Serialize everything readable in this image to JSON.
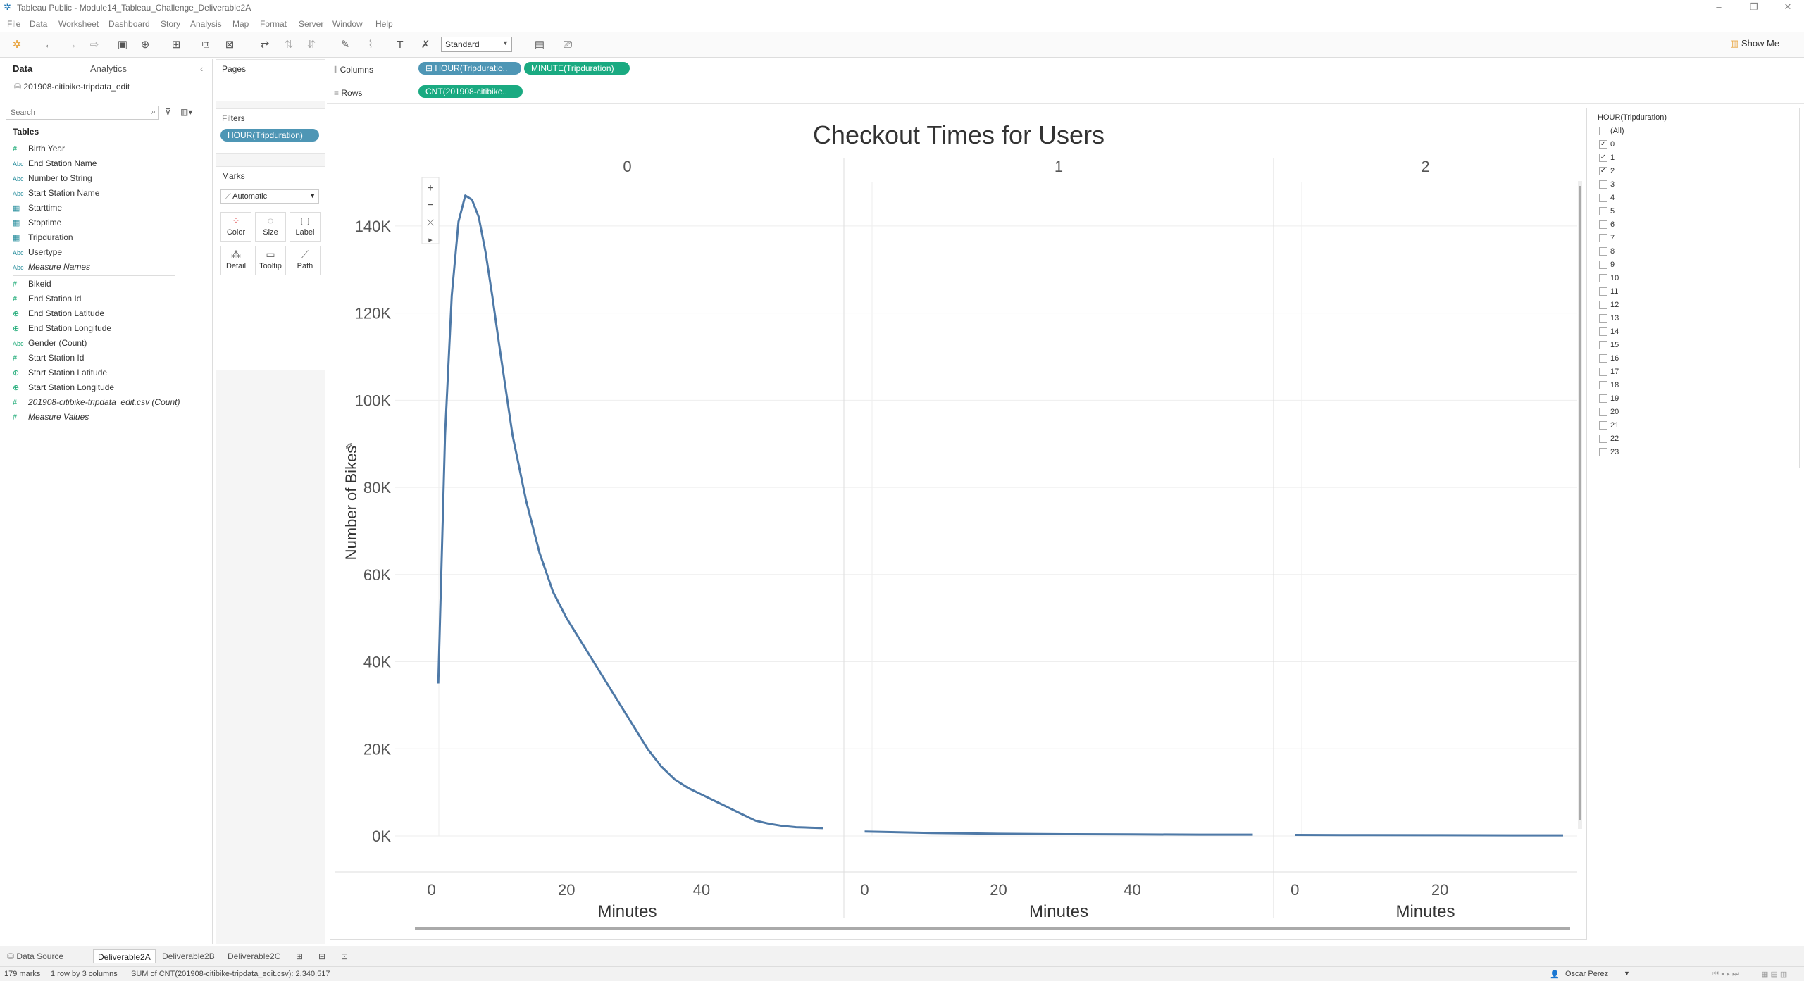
{
  "window": {
    "title": "Tableau Public - Module14_Tableau_Challenge_Deliverable2A"
  },
  "menu": [
    "File",
    "Data",
    "Worksheet",
    "Dashboard",
    "Story",
    "Analysis",
    "Map",
    "Format",
    "Server",
    "Window",
    "Help"
  ],
  "toolbar": {
    "mark_size": "Standard",
    "show_me": "Show Me"
  },
  "data_pane": {
    "tabs": [
      "Data",
      "Analytics"
    ],
    "datasource": "201908-citibike-tripdata_edit",
    "search_placeholder": "Search",
    "tables_header": "Tables",
    "dimensions": [
      {
        "icon": "number-icon",
        "label": "Birth Year"
      },
      {
        "icon": "abc-icon",
        "label": "End Station Name"
      },
      {
        "icon": "abc-icon",
        "label": "Number to String"
      },
      {
        "icon": "abc-icon",
        "label": "Start Station Name"
      },
      {
        "icon": "calendar-icon",
        "label": "Starttime"
      },
      {
        "icon": "calendar-icon",
        "label": "Stoptime"
      },
      {
        "icon": "calendar-icon",
        "label": "Tripduration"
      },
      {
        "icon": "abc-icon",
        "label": "Usertype"
      },
      {
        "icon": "abc-icon",
        "label": "Measure Names"
      }
    ],
    "measures": [
      {
        "icon": "number-icon",
        "label": "Bikeid"
      },
      {
        "icon": "number-icon",
        "label": "End Station Id"
      },
      {
        "icon": "globe-icon",
        "label": "End Station Latitude"
      },
      {
        "icon": "globe-icon",
        "label": "End Station Longitude"
      },
      {
        "icon": "abc-icon",
        "label": "Gender (Count)"
      },
      {
        "icon": "number-icon",
        "label": "Start Station Id"
      },
      {
        "icon": "globe-icon",
        "label": "Start Station Latitude"
      },
      {
        "icon": "globe-icon",
        "label": "Start Station Longitude"
      },
      {
        "icon": "number-icon",
        "label": "201908-citibike-tripdata_edit.csv (Count)"
      },
      {
        "icon": "number-icon",
        "label": "Measure Values"
      }
    ]
  },
  "cards": {
    "pages": "Pages",
    "filters": "Filters",
    "filter_pill": "HOUR(Tripduration)",
    "marks": "Marks",
    "mark_type": "Automatic",
    "mark_buttons": [
      "Color",
      "Size",
      "Label",
      "Detail",
      "Tooltip",
      "Path"
    ]
  },
  "shelves": {
    "columns_label": "Columns",
    "rows_label": "Rows",
    "columns_pills": [
      "HOUR(Tripduratio..",
      "MINUTE(Tripduration)"
    ],
    "rows_pills": [
      "CNT(201908-citibike.."
    ]
  },
  "filter_card": {
    "title": "HOUR(Tripduration)",
    "items": [
      {
        "label": "(All)",
        "checked": false
      },
      {
        "label": "0",
        "checked": true
      },
      {
        "label": "1",
        "checked": true
      },
      {
        "label": "2",
        "checked": true
      },
      {
        "label": "3",
        "checked": false
      },
      {
        "label": "4",
        "checked": false
      },
      {
        "label": "5",
        "checked": false
      },
      {
        "label": "6",
        "checked": false
      },
      {
        "label": "7",
        "checked": false
      },
      {
        "label": "8",
        "checked": false
      },
      {
        "label": "9",
        "checked": false
      },
      {
        "label": "10",
        "checked": false
      },
      {
        "label": "11",
        "checked": false
      },
      {
        "label": "12",
        "checked": false
      },
      {
        "label": "13",
        "checked": false
      },
      {
        "label": "14",
        "checked": false
      },
      {
        "label": "15",
        "checked": false
      },
      {
        "label": "16",
        "checked": false
      },
      {
        "label": "17",
        "checked": false
      },
      {
        "label": "18",
        "checked": false
      },
      {
        "label": "19",
        "checked": false
      },
      {
        "label": "20",
        "checked": false
      },
      {
        "label": "21",
        "checked": false
      },
      {
        "label": "22",
        "checked": false
      },
      {
        "label": "23",
        "checked": false
      }
    ]
  },
  "chart_data": {
    "type": "line",
    "title": "Checkout Times for Users",
    "ylabel": "Number of Bikes",
    "xlabel": "Minutes",
    "y_ticks": [
      "140K",
      "120K",
      "100K",
      "80K",
      "60K",
      "40K",
      "20K",
      "0K"
    ],
    "ylim": [
      0,
      150000
    ],
    "grid": true,
    "color": "#4e79a7",
    "panels": [
      {
        "header": "0",
        "x_ticks": [
          0,
          20,
          40
        ],
        "xlim": [
          -1,
          59
        ],
        "x": [
          1,
          2,
          3,
          4,
          5,
          6,
          7,
          8,
          9,
          10,
          12,
          14,
          16,
          18,
          20,
          22,
          24,
          26,
          28,
          30,
          32,
          34,
          36,
          38,
          40,
          42,
          44,
          46,
          48,
          50,
          52,
          54,
          56,
          58
        ],
        "y": [
          35000,
          92000,
          124000,
          141000,
          147000,
          146000,
          142000,
          134000,
          124000,
          113000,
          92000,
          77000,
          65000,
          56000,
          50000,
          45000,
          40000,
          35000,
          30000,
          25000,
          20000,
          16000,
          13000,
          11000,
          9500,
          8000,
          6500,
          5000,
          3500,
          2800,
          2300,
          2000,
          1900,
          1800
        ]
      },
      {
        "header": "1",
        "x_ticks": [
          0,
          20,
          40
        ],
        "xlim": [
          -1,
          59
        ],
        "x": [
          0,
          10,
          20,
          30,
          40,
          50,
          58
        ],
        "y": [
          1000,
          700,
          500,
          400,
          350,
          300,
          300
        ]
      },
      {
        "header": "2",
        "x_ticks": [
          0,
          20
        ],
        "xlim": [
          -1,
          37
        ],
        "x": [
          0,
          10,
          20,
          30,
          37
        ],
        "y": [
          250,
          200,
          180,
          150,
          150
        ]
      }
    ]
  },
  "sheet_tabs": [
    "Data Source",
    "Deliverable2A",
    "Deliverable2B",
    "Deliverable2C"
  ],
  "status": {
    "marks": "179 marks",
    "rows_cols": "1 row by 3 columns",
    "sum": "SUM of CNT(201908-citibike-tripdata_edit.csv): 2,340,517",
    "user": "Oscar Perez"
  }
}
